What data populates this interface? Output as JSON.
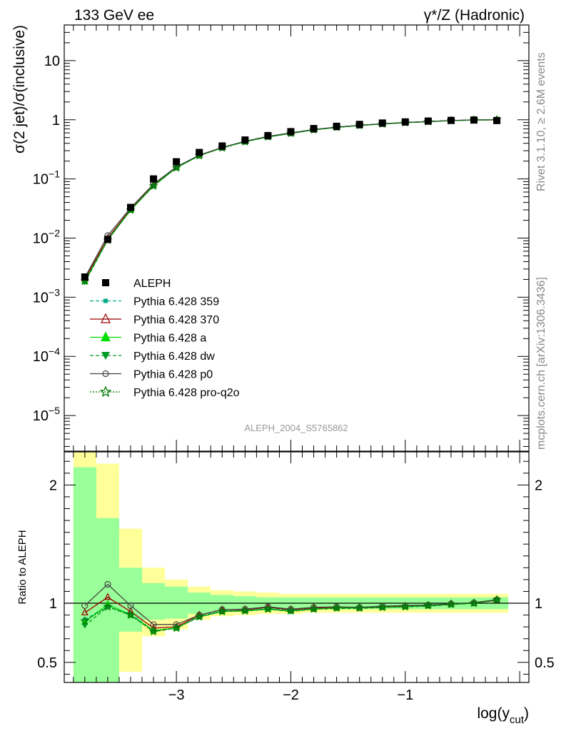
{
  "header": {
    "left_title": "133 GeV ee",
    "right_title": "γ*/Z (Hadronic)"
  },
  "side_labels": {
    "rivet": "Rivet 3.1.10, ≥ 2.6M events",
    "source": "mcplots.cern.ch [arXiv:1306.3436]"
  },
  "analysis_tag": "ALEPH_2004_S5765862",
  "colors": {
    "band_inner": "#99ff99",
    "band_outer": "#ffff99",
    "data": "#000000"
  },
  "chart_data": [
    {
      "type": "scatter",
      "panel": "main",
      "ylabel_parts": [
        "σ(2 jet)/σ(inclusive)"
      ],
      "y_scale": "log",
      "ylim": [
        2.5e-06,
        40
      ],
      "xlim": [
        -3.98,
        0.08
      ],
      "y_ticks": [
        {
          "value": 1e-05,
          "mant": "10",
          "exp": "−5"
        },
        {
          "value": 0.0001,
          "mant": "10",
          "exp": "−4"
        },
        {
          "value": 0.001,
          "mant": "10",
          "exp": "−3"
        },
        {
          "value": 0.01,
          "mant": "10",
          "exp": "−2"
        },
        {
          "value": 0.1,
          "mant": "10",
          "exp": "−1"
        },
        {
          "value": 1,
          "mant": "1",
          "exp": ""
        },
        {
          "value": 10,
          "mant": "10",
          "exp": ""
        }
      ],
      "x": [
        -3.8,
        -3.6,
        -3.4,
        -3.2,
        -3.0,
        -2.8,
        -2.6,
        -2.4,
        -2.2,
        -2.0,
        -1.8,
        -1.6,
        -1.4,
        -1.2,
        -1.0,
        -0.8,
        -0.6,
        -0.4,
        -0.2
      ],
      "data_values": [
        0.0022,
        0.0095,
        0.033,
        0.1,
        0.195,
        0.28,
        0.36,
        0.455,
        0.54,
        0.63,
        0.71,
        0.775,
        0.835,
        0.88,
        0.92,
        0.95,
        0.975,
        0.99,
        0.97
      ],
      "legend": {
        "position": "left, lower half of main panel",
        "entries": [
          {
            "label": "ALEPH",
            "marker": "square",
            "style": "data"
          },
          {
            "label": "Pythia 6.428 359",
            "color": "#00aa88",
            "marker": "square-small",
            "dash": "5,3"
          },
          {
            "label": "Pythia 6.428 370",
            "color": "#990000",
            "marker": "triangle-open",
            "dash": ""
          },
          {
            "label": "Pythia 6.428 a",
            "color": "#00dd00",
            "marker": "triangle",
            "dash": ""
          },
          {
            "label": "Pythia 6.428 dw",
            "color": "#009922",
            "marker": "triangle-down",
            "dash": "5,3"
          },
          {
            "label": "Pythia 6.428 p0",
            "color": "#444444",
            "marker": "circle-open",
            "dash": ""
          },
          {
            "label": "Pythia 6.428 pro-q2o",
            "color": "#007700",
            "marker": "star",
            "dash": "2,2"
          }
        ]
      }
    },
    {
      "type": "line",
      "panel": "ratio",
      "ylabel": "Ratio to ALEPH",
      "xlabel_parts": [
        "log(y",
        "cut",
        ")"
      ],
      "ylim": [
        0.33,
        2.28
      ],
      "xlim": [
        -3.98,
        0.08
      ],
      "x_ticks": [
        -3,
        -2,
        -1
      ],
      "x_tick_labels": [
        "−3",
        "−2",
        "−1"
      ],
      "y_ticks": [
        0.5,
        1,
        2
      ],
      "y_tick_labels": [
        "0.5",
        "1",
        "2"
      ],
      "bins": [
        {
          "lo": -3.9,
          "hi": -3.7,
          "inner": [
            0.33,
            2.15
          ],
          "outer": [
            0.33,
            2.28
          ]
        },
        {
          "lo": -3.7,
          "hi": -3.5,
          "inner": [
            0.33,
            1.72
          ],
          "outer": [
            0.33,
            2.18
          ]
        },
        {
          "lo": -3.5,
          "hi": -3.3,
          "inner": [
            0.76,
            1.3
          ],
          "outer": [
            0.42,
            1.63
          ]
        },
        {
          "lo": -3.3,
          "hi": -3.1,
          "inner": [
            0.86,
            1.17
          ],
          "outer": [
            0.72,
            1.3
          ]
        },
        {
          "lo": -3.1,
          "hi": -2.9,
          "inner": [
            0.87,
            1.14
          ],
          "outer": [
            0.78,
            1.2
          ]
        },
        {
          "lo": -2.9,
          "hi": -2.7,
          "inner": [
            0.91,
            1.09
          ],
          "outer": [
            0.86,
            1.14
          ]
        },
        {
          "lo": -2.7,
          "hi": -2.5,
          "inner": [
            0.93,
            1.07
          ],
          "outer": [
            0.89,
            1.11
          ]
        },
        {
          "lo": -2.5,
          "hi": -2.3,
          "inner": [
            0.94,
            1.06
          ],
          "outer": [
            0.9,
            1.1
          ]
        },
        {
          "lo": -2.3,
          "hi": -2.1,
          "inner": [
            0.94,
            1.05
          ],
          "outer": [
            0.91,
            1.09
          ]
        },
        {
          "lo": -2.1,
          "hi": -1.9,
          "inner": [
            0.95,
            1.05
          ],
          "outer": [
            0.91,
            1.08
          ]
        },
        {
          "lo": -1.9,
          "hi": -1.7,
          "inner": [
            0.95,
            1.05
          ],
          "outer": [
            0.92,
            1.08
          ]
        },
        {
          "lo": -1.7,
          "hi": -1.5,
          "inner": [
            0.95,
            1.05
          ],
          "outer": [
            0.92,
            1.08
          ]
        },
        {
          "lo": -1.5,
          "hi": -1.3,
          "inner": [
            0.95,
            1.05
          ],
          "outer": [
            0.92,
            1.08
          ]
        },
        {
          "lo": -1.3,
          "hi": -1.1,
          "inner": [
            0.95,
            1.05
          ],
          "outer": [
            0.92,
            1.08
          ]
        },
        {
          "lo": -1.1,
          "hi": -0.9,
          "inner": [
            0.95,
            1.05
          ],
          "outer": [
            0.92,
            1.08
          ]
        },
        {
          "lo": -0.9,
          "hi": -0.7,
          "inner": [
            0.95,
            1.05
          ],
          "outer": [
            0.92,
            1.08
          ]
        },
        {
          "lo": -0.7,
          "hi": -0.5,
          "inner": [
            0.95,
            1.05
          ],
          "outer": [
            0.92,
            1.08
          ]
        },
        {
          "lo": -0.5,
          "hi": -0.3,
          "inner": [
            0.95,
            1.05
          ],
          "outer": [
            0.92,
            1.08
          ]
        },
        {
          "lo": -0.3,
          "hi": -0.1,
          "inner": [
            0.95,
            1.05
          ],
          "outer": [
            0.92,
            1.08
          ]
        }
      ],
      "x": [
        -3.8,
        -3.6,
        -3.4,
        -3.2,
        -3.0,
        -2.8,
        -2.6,
        -2.4,
        -2.2,
        -2.0,
        -1.8,
        -1.6,
        -1.4,
        -1.2,
        -1.0,
        -0.8,
        -0.6,
        -0.4,
        -0.2
      ],
      "series": [
        {
          "name": "Pythia 6.428 359",
          "values": [
            0.86,
            0.98,
            0.91,
            0.77,
            0.79,
            0.89,
            0.935,
            0.94,
            0.955,
            0.94,
            0.955,
            0.96,
            0.96,
            0.965,
            0.97,
            0.98,
            0.99,
            1.0,
            1.03
          ]
        },
        {
          "name": "Pythia 6.428 370",
          "values": [
            0.92,
            1.05,
            0.93,
            0.79,
            0.8,
            0.9,
            0.945,
            0.945,
            0.965,
            0.945,
            0.96,
            0.965,
            0.96,
            0.97,
            0.975,
            0.98,
            0.995,
            1.0,
            1.025
          ]
        },
        {
          "name": "Pythia 6.428 a",
          "values": [
            0.84,
            0.99,
            0.9,
            0.77,
            0.79,
            0.885,
            0.93,
            0.935,
            0.95,
            0.935,
            0.95,
            0.96,
            0.96,
            0.965,
            0.97,
            0.98,
            0.99,
            1.0,
            1.03
          ]
        },
        {
          "name": "Pythia 6.428 dw",
          "values": [
            0.81,
            0.97,
            0.9,
            0.76,
            0.79,
            0.885,
            0.93,
            0.935,
            0.95,
            0.93,
            0.95,
            0.955,
            0.955,
            0.965,
            0.97,
            0.975,
            0.99,
            1.0,
            1.03
          ]
        },
        {
          "name": "Pythia 6.428 p0",
          "values": [
            0.98,
            1.16,
            0.98,
            0.82,
            0.82,
            0.9,
            0.945,
            0.95,
            0.97,
            0.95,
            0.965,
            0.97,
            0.965,
            0.975,
            0.98,
            0.985,
            0.995,
            1.005,
            1.03
          ]
        },
        {
          "name": "Pythia 6.428 pro-q2o",
          "values": [
            0.85,
            0.97,
            0.9,
            0.76,
            0.79,
            0.885,
            0.93,
            0.935,
            0.95,
            0.935,
            0.95,
            0.96,
            0.96,
            0.965,
            0.97,
            0.98,
            0.99,
            1.0,
            1.03
          ]
        }
      ]
    }
  ]
}
